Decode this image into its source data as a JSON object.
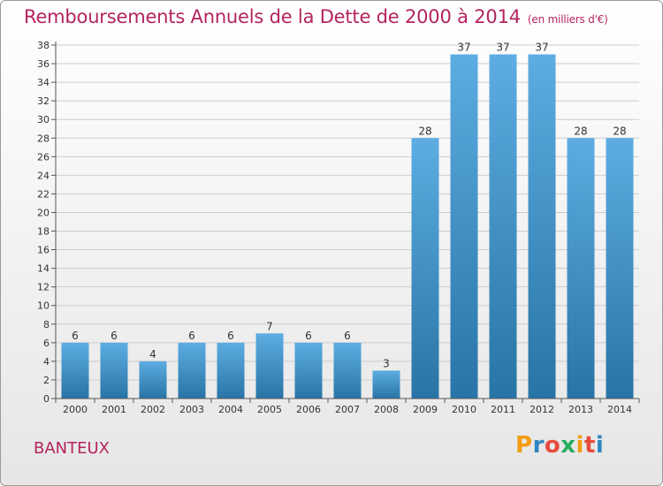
{
  "header": {
    "title": "Remboursements Annuels de la Dette de 2000 à 2014",
    "unit": "(en milliers d'€)"
  },
  "footer": {
    "commune": "BANTEUX",
    "logo_letters": [
      "P",
      "r",
      "o",
      "x",
      "i",
      "t",
      "i"
    ],
    "logo_colors": [
      "#f39c12",
      "#2e86c1",
      "#e74c3c",
      "#27ae60",
      "#f39c12",
      "#e74c3c",
      "#2e86c1"
    ]
  },
  "colors": {
    "bar_top": "#5dade2",
    "bar_bottom": "#2874a6",
    "title": "#b4245e",
    "grid": "#cccccc"
  },
  "chart_data": {
    "type": "bar",
    "title": "Remboursements Annuels de la Dette de 2000 à 2014",
    "xlabel": "",
    "ylabel": "",
    "categories": [
      "2000",
      "2001",
      "2002",
      "2003",
      "2004",
      "2005",
      "2006",
      "2007",
      "2008",
      "2009",
      "2010",
      "2011",
      "2012",
      "2013",
      "2014"
    ],
    "values": [
      6,
      6,
      4,
      6,
      6,
      7,
      6,
      6,
      3,
      28,
      37,
      37,
      37,
      28,
      28
    ],
    "ylim": [
      0,
      38
    ],
    "yticks": [
      0,
      2,
      4,
      6,
      8,
      10,
      12,
      14,
      16,
      18,
      20,
      22,
      24,
      26,
      28,
      30,
      32,
      34,
      36,
      38
    ],
    "grid": true
  }
}
